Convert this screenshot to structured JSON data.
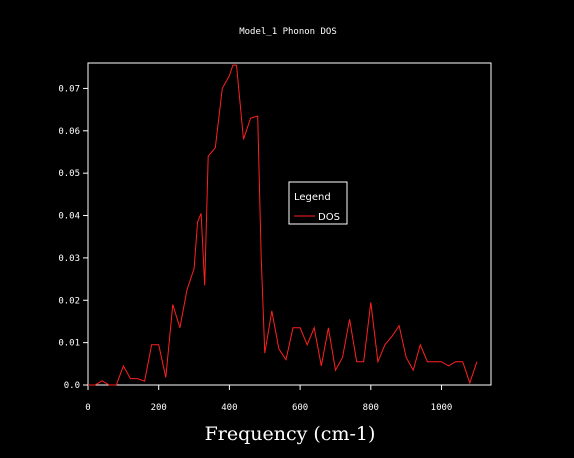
{
  "colors": {
    "background": "#000000",
    "axis": "#ffffff",
    "series": "#ff2020"
  },
  "chart_data": {
    "type": "line",
    "title": "Model_1 Phonon DOS",
    "xlabel": "Frequency (cm-1)",
    "ylabel": "",
    "xlim": [
      0,
      1140
    ],
    "ylim": [
      0,
      0.076
    ],
    "xticks": [
      0,
      200,
      400,
      600,
      800,
      1000
    ],
    "xtick_labels": [
      "0",
      "200",
      "400",
      "600",
      "800",
      "1000"
    ],
    "yticks": [
      0.0,
      0.01,
      0.02,
      0.03,
      0.04,
      0.05,
      0.06,
      0.07
    ],
    "ytick_labels": [
      "0.0",
      "0.01",
      "0.02",
      "0.03",
      "0.04",
      "0.05",
      "0.06",
      "0.07"
    ],
    "grid": false,
    "legend": {
      "title": "Legend",
      "placement": "center-right",
      "entries": [
        "DOS"
      ]
    },
    "series": [
      {
        "name": "DOS",
        "x": [
          0,
          20,
          40,
          60,
          80,
          100,
          120,
          140,
          160,
          180,
          200,
          220,
          240,
          260,
          280,
          300,
          310,
          320,
          330,
          340,
          360,
          380,
          400,
          410,
          420,
          440,
          460,
          480,
          490,
          500,
          520,
          540,
          560,
          580,
          600,
          620,
          640,
          660,
          680,
          700,
          720,
          740,
          760,
          780,
          800,
          820,
          840,
          860,
          880,
          900,
          920,
          940,
          960,
          980,
          1000,
          1020,
          1040,
          1060,
          1080,
          1100
        ],
        "y": [
          0.0,
          0.0,
          0.001,
          0.0,
          0.0,
          0.0045,
          0.0015,
          0.0015,
          0.0009,
          0.0095,
          0.0095,
          0.0018,
          0.019,
          0.0135,
          0.0225,
          0.0275,
          0.0385,
          0.0405,
          0.0235,
          0.054,
          0.056,
          0.07,
          0.073,
          0.0755,
          0.0755,
          0.058,
          0.063,
          0.0635,
          0.03,
          0.0075,
          0.0175,
          0.0085,
          0.006,
          0.0135,
          0.0135,
          0.0095,
          0.0135,
          0.0045,
          0.0135,
          0.0035,
          0.0065,
          0.0155,
          0.0055,
          0.0055,
          0.0195,
          0.0055,
          0.0095,
          0.0115,
          0.014,
          0.0065,
          0.0035,
          0.0095,
          0.0055,
          0.0055,
          0.0055,
          0.0045,
          0.0055,
          0.0055,
          0.0005,
          0.0055
        ]
      }
    ]
  }
}
